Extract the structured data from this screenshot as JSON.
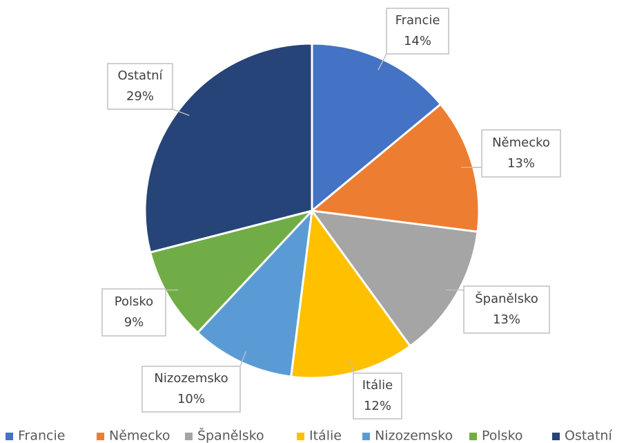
{
  "chart_data": {
    "type": "pie",
    "categories": [
      "Francie",
      "Německo",
      "Španělsko",
      "Itálie",
      "Nizozemsko",
      "Polsko",
      "Ostatní"
    ],
    "values": [
      14,
      13,
      13,
      12,
      10,
      9,
      29
    ],
    "value_labels": [
      "14%",
      "13%",
      "13%",
      "12%",
      "10%",
      "9%",
      "29%"
    ],
    "colors": [
      "#4472c4",
      "#ed7d31",
      "#a5a5a5",
      "#ffc000",
      "#5b9bd5",
      "#70ad47",
      "#264478"
    ],
    "legend": "bottom"
  }
}
